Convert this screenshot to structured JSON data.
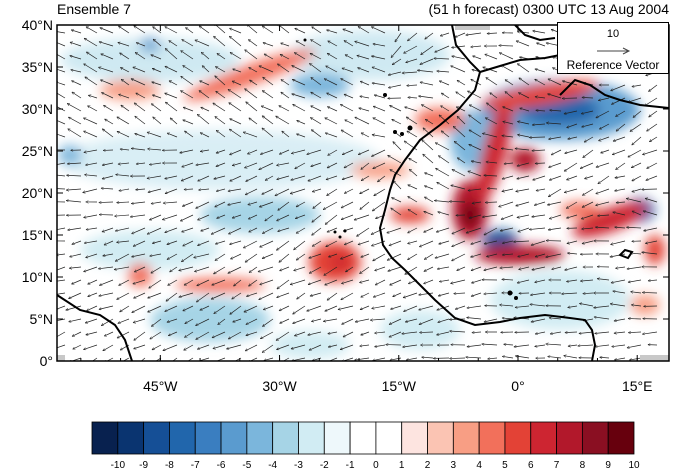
{
  "titles": {
    "left": "Ensemble 7",
    "right": "(51 h forecast) 0300 UTC 13 Aug 2004"
  },
  "map": {
    "lat_ticks": [
      "40°N",
      "35°N",
      "30°N",
      "25°N",
      "20°N",
      "15°N",
      "10°N",
      "5°N",
      "0°"
    ],
    "lon_ticks": [
      "45°W",
      "30°W",
      "15°W",
      "0°",
      "15°E"
    ],
    "lat_range": [
      0,
      40
    ],
    "lon_range": [
      -58,
      19
    ],
    "coastline_color": "#000000",
    "vector_color": "#222222"
  },
  "reference_vector": {
    "magnitude": "10",
    "label": "Reference Vector"
  },
  "colorbar": {
    "labels": [
      "-10",
      "-9",
      "-8",
      "-7",
      "-6",
      "-5",
      "-4",
      "-3",
      "-2",
      "-1",
      "0",
      "1",
      "2",
      "3",
      "4",
      "5",
      "6",
      "7",
      "8",
      "9",
      "10"
    ],
    "colors": [
      "#08214f",
      "#0a3470",
      "#154f96",
      "#2166ac",
      "#3a7ec0",
      "#5a9bcf",
      "#7bb6dc",
      "#a6d4e6",
      "#d1ecf3",
      "#eef8fb",
      "#ffffff",
      "#ffffff",
      "#fde4e0",
      "#fbc4b3",
      "#f89e84",
      "#f2705b",
      "#e34236",
      "#cd2531",
      "#b2182b",
      "#8a0f22",
      "#67000d"
    ]
  }
}
